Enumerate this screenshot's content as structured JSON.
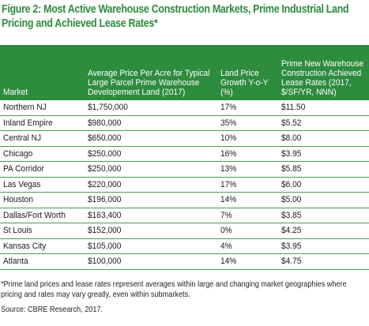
{
  "figure": {
    "title": "Figure 2: Most Active Warehouse Construction Markets, Prime Industrial Land Pricing and Achieved Lease Rates*"
  },
  "table": {
    "headers": {
      "market": "Market",
      "avg_price": "Average Price Per Acre for Typical Large Parcel Prime Warehouse Developement Land (2017)",
      "growth": "Land Price Growth Y-o-Y (%)",
      "lease": "Prime New Warehouse Construction Achieved Lease Rates (2017, $/SF/YR, NNN)"
    },
    "rows": [
      {
        "market": "Northern NJ",
        "avg_price": "$1,750,000",
        "growth": "17%",
        "lease": "$11.50"
      },
      {
        "market": "Inland Empire",
        "avg_price": "$980,000",
        "growth": "35%",
        "lease": "$5.52"
      },
      {
        "market": "Central NJ",
        "avg_price": "$650,000",
        "growth": "10%",
        "lease": "$8.00"
      },
      {
        "market": "Chicago",
        "avg_price": "$250,000",
        "growth": "16%",
        "lease": "$3.95"
      },
      {
        "market": "PA Corridor",
        "avg_price": "$250,000",
        "growth": "13%",
        "lease": "$5.85"
      },
      {
        "market": "Las Vegas",
        "avg_price": "$220,000",
        "growth": "17%",
        "lease": "$6.00"
      },
      {
        "market": "Houston",
        "avg_price": "$196,000",
        "growth": "14%",
        "lease": "$5.00"
      },
      {
        "market": "Dallas/Fort Worth",
        "avg_price": "$163,400",
        "growth": "7%",
        "lease": "$3.85"
      },
      {
        "market": "St Louis",
        "avg_price": "$152,000",
        "growth": "0%",
        "lease": "$4.25"
      },
      {
        "market": "Kansas City",
        "avg_price": "$105,000",
        "growth": "4%",
        "lease": "$3.95"
      },
      {
        "market": "Atlanta",
        "avg_price": "$100,000",
        "growth": "14%",
        "lease": "$4.75"
      }
    ]
  },
  "footnote": "*Prime land prices and lease rates represent averages within large and changing market geographies where pricing and rates may vary greatly, even within submarkets.",
  "source": "Source: CBRE Research, 2017.",
  "colors": {
    "accent": "#2d8c3e",
    "title": "#2e8b3e",
    "row_rule": "#4b9c52"
  }
}
